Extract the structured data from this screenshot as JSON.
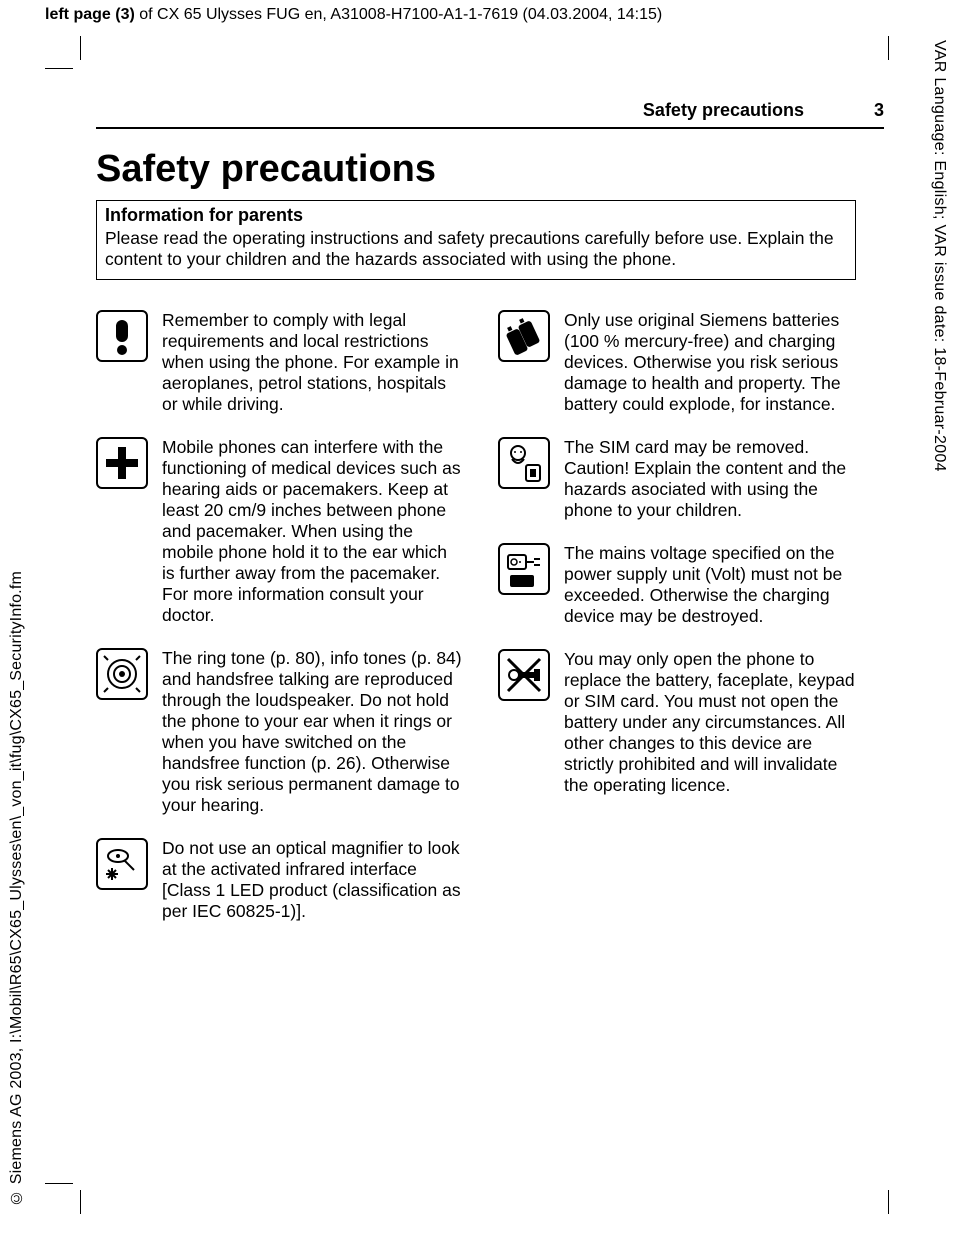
{
  "top_header": {
    "bold": "left page (3)",
    "rest": " of CX 65 Ulysses FUG en, A31008-H7100-A1-1-7619 (04.03.2004, 14:15)"
  },
  "right_margin": "VAR Language: English; VAR issue date: 18-Februar-2004",
  "left_margin": "© Siemens AG 2003, I:\\Mobil\\R65\\CX65_Ulysses\\en\\_von_it\\fug\\CX65_SecurityInfo.fm",
  "page_header": {
    "section": "Safety precautions",
    "page_num": "3"
  },
  "title": "Safety precautions",
  "info_box": {
    "heading": "Information for parents",
    "body": "Please read the operating instructions and safety precautions carefully before use. Explain the content to your children and the hazards associated with using the phone."
  },
  "left_items": [
    {
      "icon": "exclaim",
      "text": "Remember to comply with legal requirements and local restrictions when using the phone. For example in aeroplanes, petrol stations, hospitals or while driving."
    },
    {
      "icon": "plus",
      "text": "Mobile phones can interfere with the functioning of medical devices such as hearing aids or pacemakers. Keep at least 20 cm/9 inches between phone and pacemaker. When using the mobile phone hold it to the ear which is further away from the pacemaker. For more information consult your doctor."
    },
    {
      "icon": "speaker",
      "text": "The ring tone (p. 80), info tones (p. 84) and handsfree talking are reproduced through the loudspeaker. Do not hold the phone to your ear when it rings or when you have switched on the handsfree function (p. 26). Otherwise you risk serious permanent damage to your hearing."
    },
    {
      "icon": "irda",
      "text": "Do not use an optical magnifier to look at the activated infrared interface [Class 1 LED product (classification as per IEC 60825-1)]."
    }
  ],
  "right_items": [
    {
      "icon": "battery",
      "text": "Only use original Siemens batteries (100 % mercury-free) and charging devices. Otherwise you risk serious damage to health and property. The battery could explode, for instance."
    },
    {
      "icon": "sim",
      "text": "The SIM card may be removed. Caution! Explain the content and the hazards asociated with using the phone to your children."
    },
    {
      "icon": "volt",
      "text": "The mains voltage specified on the power supply unit (Volt) must not be exceeded. Otherwise the charging device may be destroyed."
    },
    {
      "icon": "noopen",
      "text": "You may only open the phone to replace the battery, faceplate, keypad or SIM card. You must not open the battery under any circumstances. All other changes to this device are strictly prohibited and will invalidate the operating licence."
    }
  ]
}
